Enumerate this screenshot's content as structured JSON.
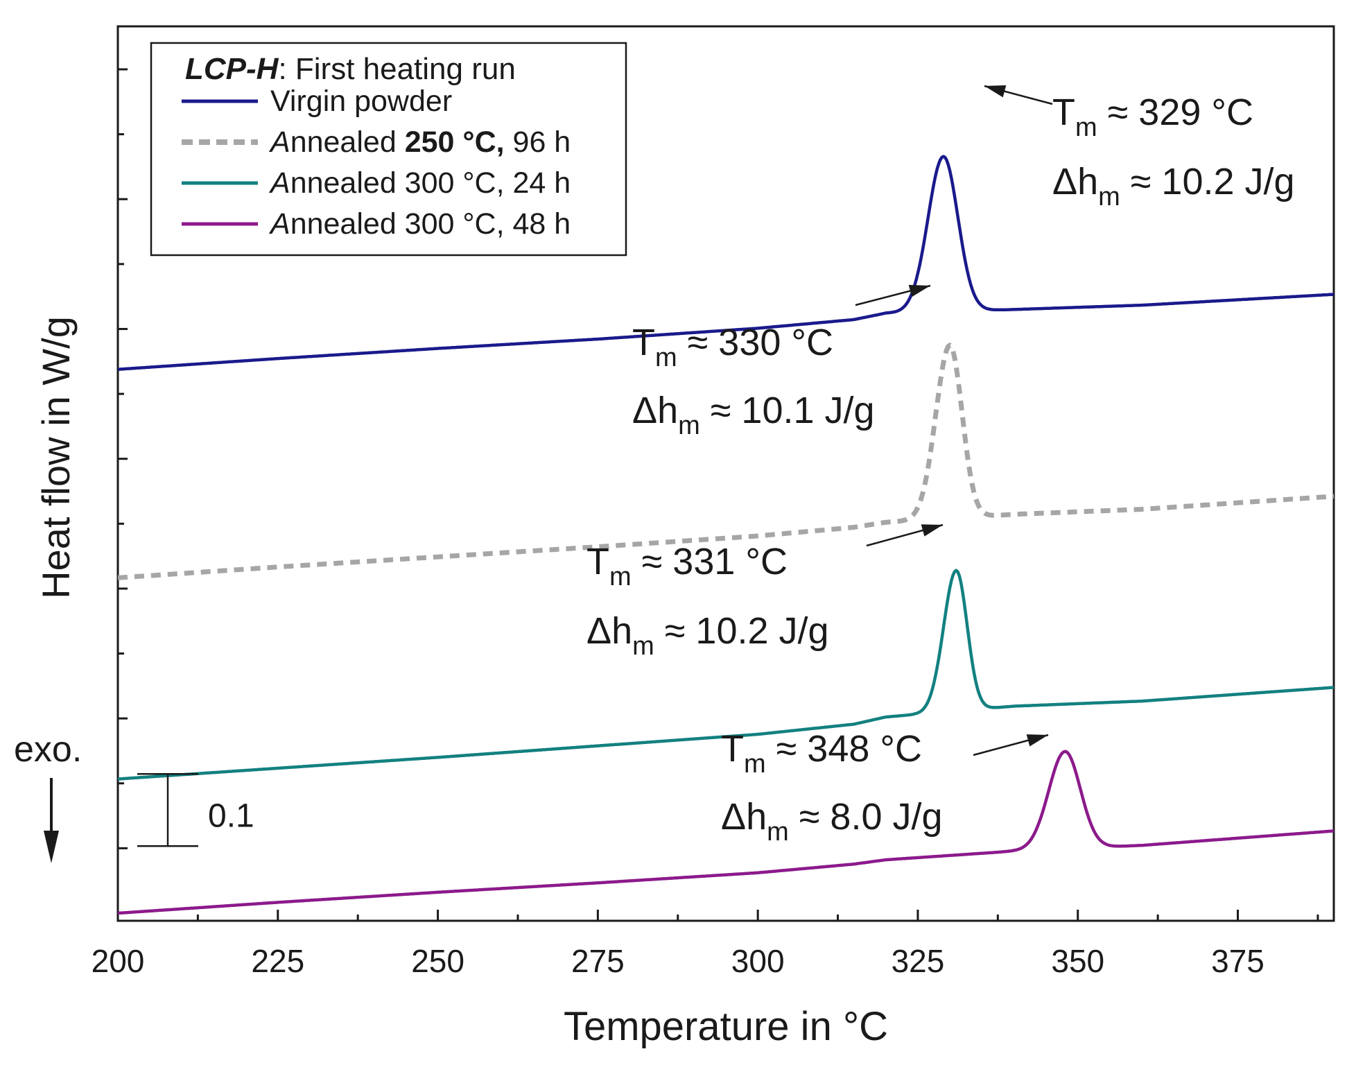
{
  "chart_data": {
    "type": "line",
    "xlabel": "Temperature in °C",
    "ylabel": "Heat flow in W/g",
    "xlim": [
      200,
      390
    ],
    "ylim": [
      0,
      1.17
    ],
    "x_ticks": [
      200,
      225,
      250,
      275,
      300,
      325,
      350,
      375
    ],
    "y_tick_labels_shown": false,
    "scale_bar": {
      "value": 0.1,
      "label": "0.1"
    },
    "exo_label": "exo.",
    "legend": {
      "position": "top-left",
      "title_bold_italic": "LCP-H",
      "title_rest": ": First heating run"
    },
    "series": [
      {
        "name": "Virgin powder",
        "legend_parts": [
          {
            "t": "Virgin powder"
          }
        ],
        "color": "#1a1a8c",
        "style": "solid",
        "baseline": [
          [
            200,
            0.754
          ],
          [
            225,
            0.769
          ],
          [
            250,
            0.783
          ],
          [
            275,
            0.796
          ],
          [
            300,
            0.811
          ],
          [
            315,
            0.823
          ],
          [
            320,
            0.832
          ],
          [
            340,
            0.837
          ],
          [
            360,
            0.843
          ],
          [
            390,
            0.858
          ]
        ],
        "peak": {
          "x": 329,
          "amp": 0.215,
          "wl": 3.4,
          "wr": 3.2
        },
        "annotation": {
          "tm": "329 °C",
          "dh": "10.2 J/g"
        }
      },
      {
        "name": "Annealed 250 °C, 96 h",
        "legend_parts": [
          {
            "t": "A",
            "i": true
          },
          {
            "t": "nnealed "
          },
          {
            "t": "250 °C,",
            "b": true
          },
          {
            "t": " 96 h"
          }
        ],
        "color": "#a6a6a6",
        "style": "dashed",
        "baseline": [
          [
            200,
            0.465
          ],
          [
            225,
            0.48
          ],
          [
            250,
            0.494
          ],
          [
            275,
            0.508
          ],
          [
            300,
            0.523
          ],
          [
            315,
            0.535
          ],
          [
            320,
            0.542
          ],
          [
            340,
            0.553
          ],
          [
            360,
            0.56
          ],
          [
            390,
            0.578
          ]
        ],
        "peak": {
          "x": 330,
          "amp": 0.24,
          "wl": 3.1,
          "wr": 2.7
        },
        "annotation": {
          "tm": "330 °C",
          "dh": "10.1 J/g"
        }
      },
      {
        "name": "Annealed 300 °C, 24 h",
        "legend_parts": [
          {
            "t": "A",
            "i": true
          },
          {
            "t": "nnealed 300 °C, 24 h"
          }
        ],
        "color": "#138080",
        "style": "solid",
        "baseline": [
          [
            200,
            0.186
          ],
          [
            225,
            0.201
          ],
          [
            250,
            0.216
          ],
          [
            275,
            0.232
          ],
          [
            300,
            0.248
          ],
          [
            315,
            0.262
          ],
          [
            320,
            0.272
          ],
          [
            340,
            0.287
          ],
          [
            360,
            0.294
          ],
          [
            390,
            0.313
          ]
        ],
        "peak": {
          "x": 331,
          "amp": 0.195,
          "wl": 2.8,
          "wr": 2.4
        },
        "annotation": {
          "tm": "331 °C",
          "dh": "10.2 J/g"
        }
      },
      {
        "name": "Annealed 300 °C, 48 h",
        "legend_parts": [
          {
            "t": "A",
            "i": true
          },
          {
            "t": "nnealed 300 °C, 48 h"
          }
        ],
        "color": "#8c1a8c",
        "style": "solid",
        "baseline": [
          [
            200,
            0.0
          ],
          [
            225,
            0.015
          ],
          [
            250,
            0.029
          ],
          [
            275,
            0.042
          ],
          [
            300,
            0.056
          ],
          [
            315,
            0.068
          ],
          [
            320,
            0.074
          ],
          [
            340,
            0.086
          ],
          [
            360,
            0.094
          ],
          [
            390,
            0.114
          ]
        ],
        "peak": {
          "x": 348,
          "amp": 0.135,
          "wl": 3.6,
          "wr": 3.4
        },
        "annotation": {
          "tm": "348 °C",
          "dh": "8.0 J/g"
        }
      }
    ]
  }
}
